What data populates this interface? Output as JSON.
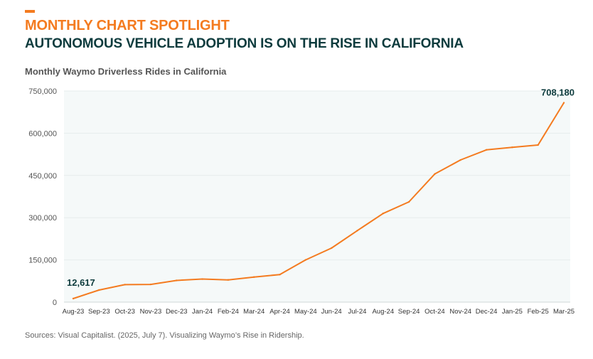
{
  "header": {
    "kicker": "MONTHLY CHART SPOTLIGHT",
    "headline": "AUTONOMOUS VEHICLE ADOPTION IS ON THE RISE IN CALIFORNIA"
  },
  "source": "Sources: Visual Capitalist. (2025, July 7). Visualizing Waymo’s Rise in Ridership.",
  "colors": {
    "accent": "#f47b20",
    "headline": "#0d3b3d",
    "plot_bg": "#f5f9f9",
    "grid": "#e6ecec"
  },
  "chart_data": {
    "type": "line",
    "title": "Monthly Waymo Driverless Rides in California",
    "xlabel": "",
    "ylabel": "",
    "categories": [
      "Aug-23",
      "Sep-23",
      "Oct-23",
      "Nov-23",
      "Dec-23",
      "Jan-24",
      "Feb-24",
      "Mar-24",
      "Apr-24",
      "May-24",
      "Jun-24",
      "Jul-24",
      "Aug-24",
      "Sep-24",
      "Oct-24",
      "Nov-24",
      "Dec-24",
      "Jan-25",
      "Feb-25",
      "Mar-25"
    ],
    "series": [
      {
        "name": "Monthly Waymo Driverless Rides",
        "values": [
          12617,
          43000,
          62000,
          63000,
          77000,
          82000,
          79000,
          89000,
          98000,
          150000,
          192000,
          254000,
          315000,
          356000,
          455000,
          505000,
          541000,
          550000,
          558000,
          708180
        ]
      }
    ],
    "ylim": [
      0,
      750000
    ],
    "yticks": [
      0,
      150000,
      300000,
      450000,
      600000,
      750000
    ],
    "ytick_labels": [
      "0",
      "150,000",
      "300,000",
      "450,000",
      "600,000",
      "750,000"
    ],
    "grid": true,
    "annotations": [
      {
        "index": 0,
        "text": "12,617"
      },
      {
        "index": 19,
        "text": "708,180"
      }
    ]
  }
}
